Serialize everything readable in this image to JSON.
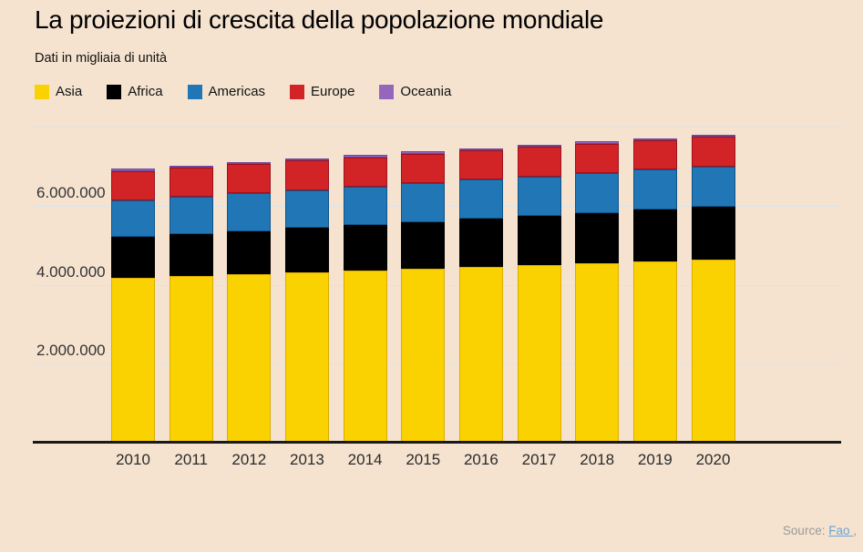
{
  "page": {
    "background_color": "#f5e3d0"
  },
  "header": {
    "title": "La proiezioni di crescita della popolazione mondiale",
    "subtitle": "Dati in migliaia di unità"
  },
  "legend": {
    "items": [
      {
        "label": "Asia",
        "color": "#FAD201"
      },
      {
        "label": "Africa",
        "color": "#000000"
      },
      {
        "label": "Americas",
        "color": "#2176B5"
      },
      {
        "label": "Europe",
        "color": "#D22427"
      },
      {
        "label": "Oceania",
        "color": "#9467BD"
      }
    ]
  },
  "chart_data": {
    "type": "bar",
    "stacked": true,
    "title": "La proiezioni di crescita della popolazione mondiale",
    "subtitle": "Dati in migliaia di unità",
    "unit": "thousands",
    "categories": [
      "2010",
      "2011",
      "2012",
      "2013",
      "2014",
      "2015",
      "2016",
      "2017",
      "2018",
      "2019",
      "2020"
    ],
    "series": [
      {
        "name": "Asia",
        "color": "#FAD201",
        "border_color": "#DCAC00",
        "values": [
          4164252,
          4212000,
          4260000,
          4308000,
          4356000,
          4403000,
          4450000,
          4496000,
          4542000,
          4587000,
          4631000
        ]
      },
      {
        "name": "Africa",
        "color": "#000000",
        "border_color": "#000000",
        "values": [
          1044864,
          1072000,
          1100000,
          1128000,
          1156000,
          1186000,
          1216000,
          1246000,
          1276000,
          1308000,
          1340598
        ]
      },
      {
        "name": "Americas",
        "color": "#2176B5",
        "border_color": "#10548A",
        "values": [
          934611,
          944000,
          953000,
          962000,
          971000,
          980000,
          989000,
          997000,
          1006000,
          1014000,
          1022831
        ]
      },
      {
        "name": "Europe",
        "color": "#D22427",
        "border_color": "#9E111E",
        "values": [
          735395,
          737000,
          739000,
          740000,
          742000,
          743000,
          744000,
          745000,
          746000,
          747000,
          747636
        ]
      },
      {
        "name": "Oceania",
        "color": "#9467BD",
        "border_color": "#70489C",
        "values": [
          36659,
          37300,
          38000,
          38700,
          39400,
          40100,
          40800,
          41500,
          42000,
          42400,
          42678
        ]
      }
    ],
    "ylim": [
      0,
      8000000
    ],
    "y_ticks": [
      {
        "value": 2000000,
        "label": "2.000.000"
      },
      {
        "value": 4000000,
        "label": "4.000.000"
      },
      {
        "value": 6000000,
        "label": "6.000.000"
      },
      {
        "value": 8000000,
        "label": ""
      }
    ],
    "grid": "horizontal",
    "legend_position": "top"
  },
  "footer": {
    "source_label": "Source:",
    "source_link": "Fao ",
    "source_suffix": ","
  }
}
